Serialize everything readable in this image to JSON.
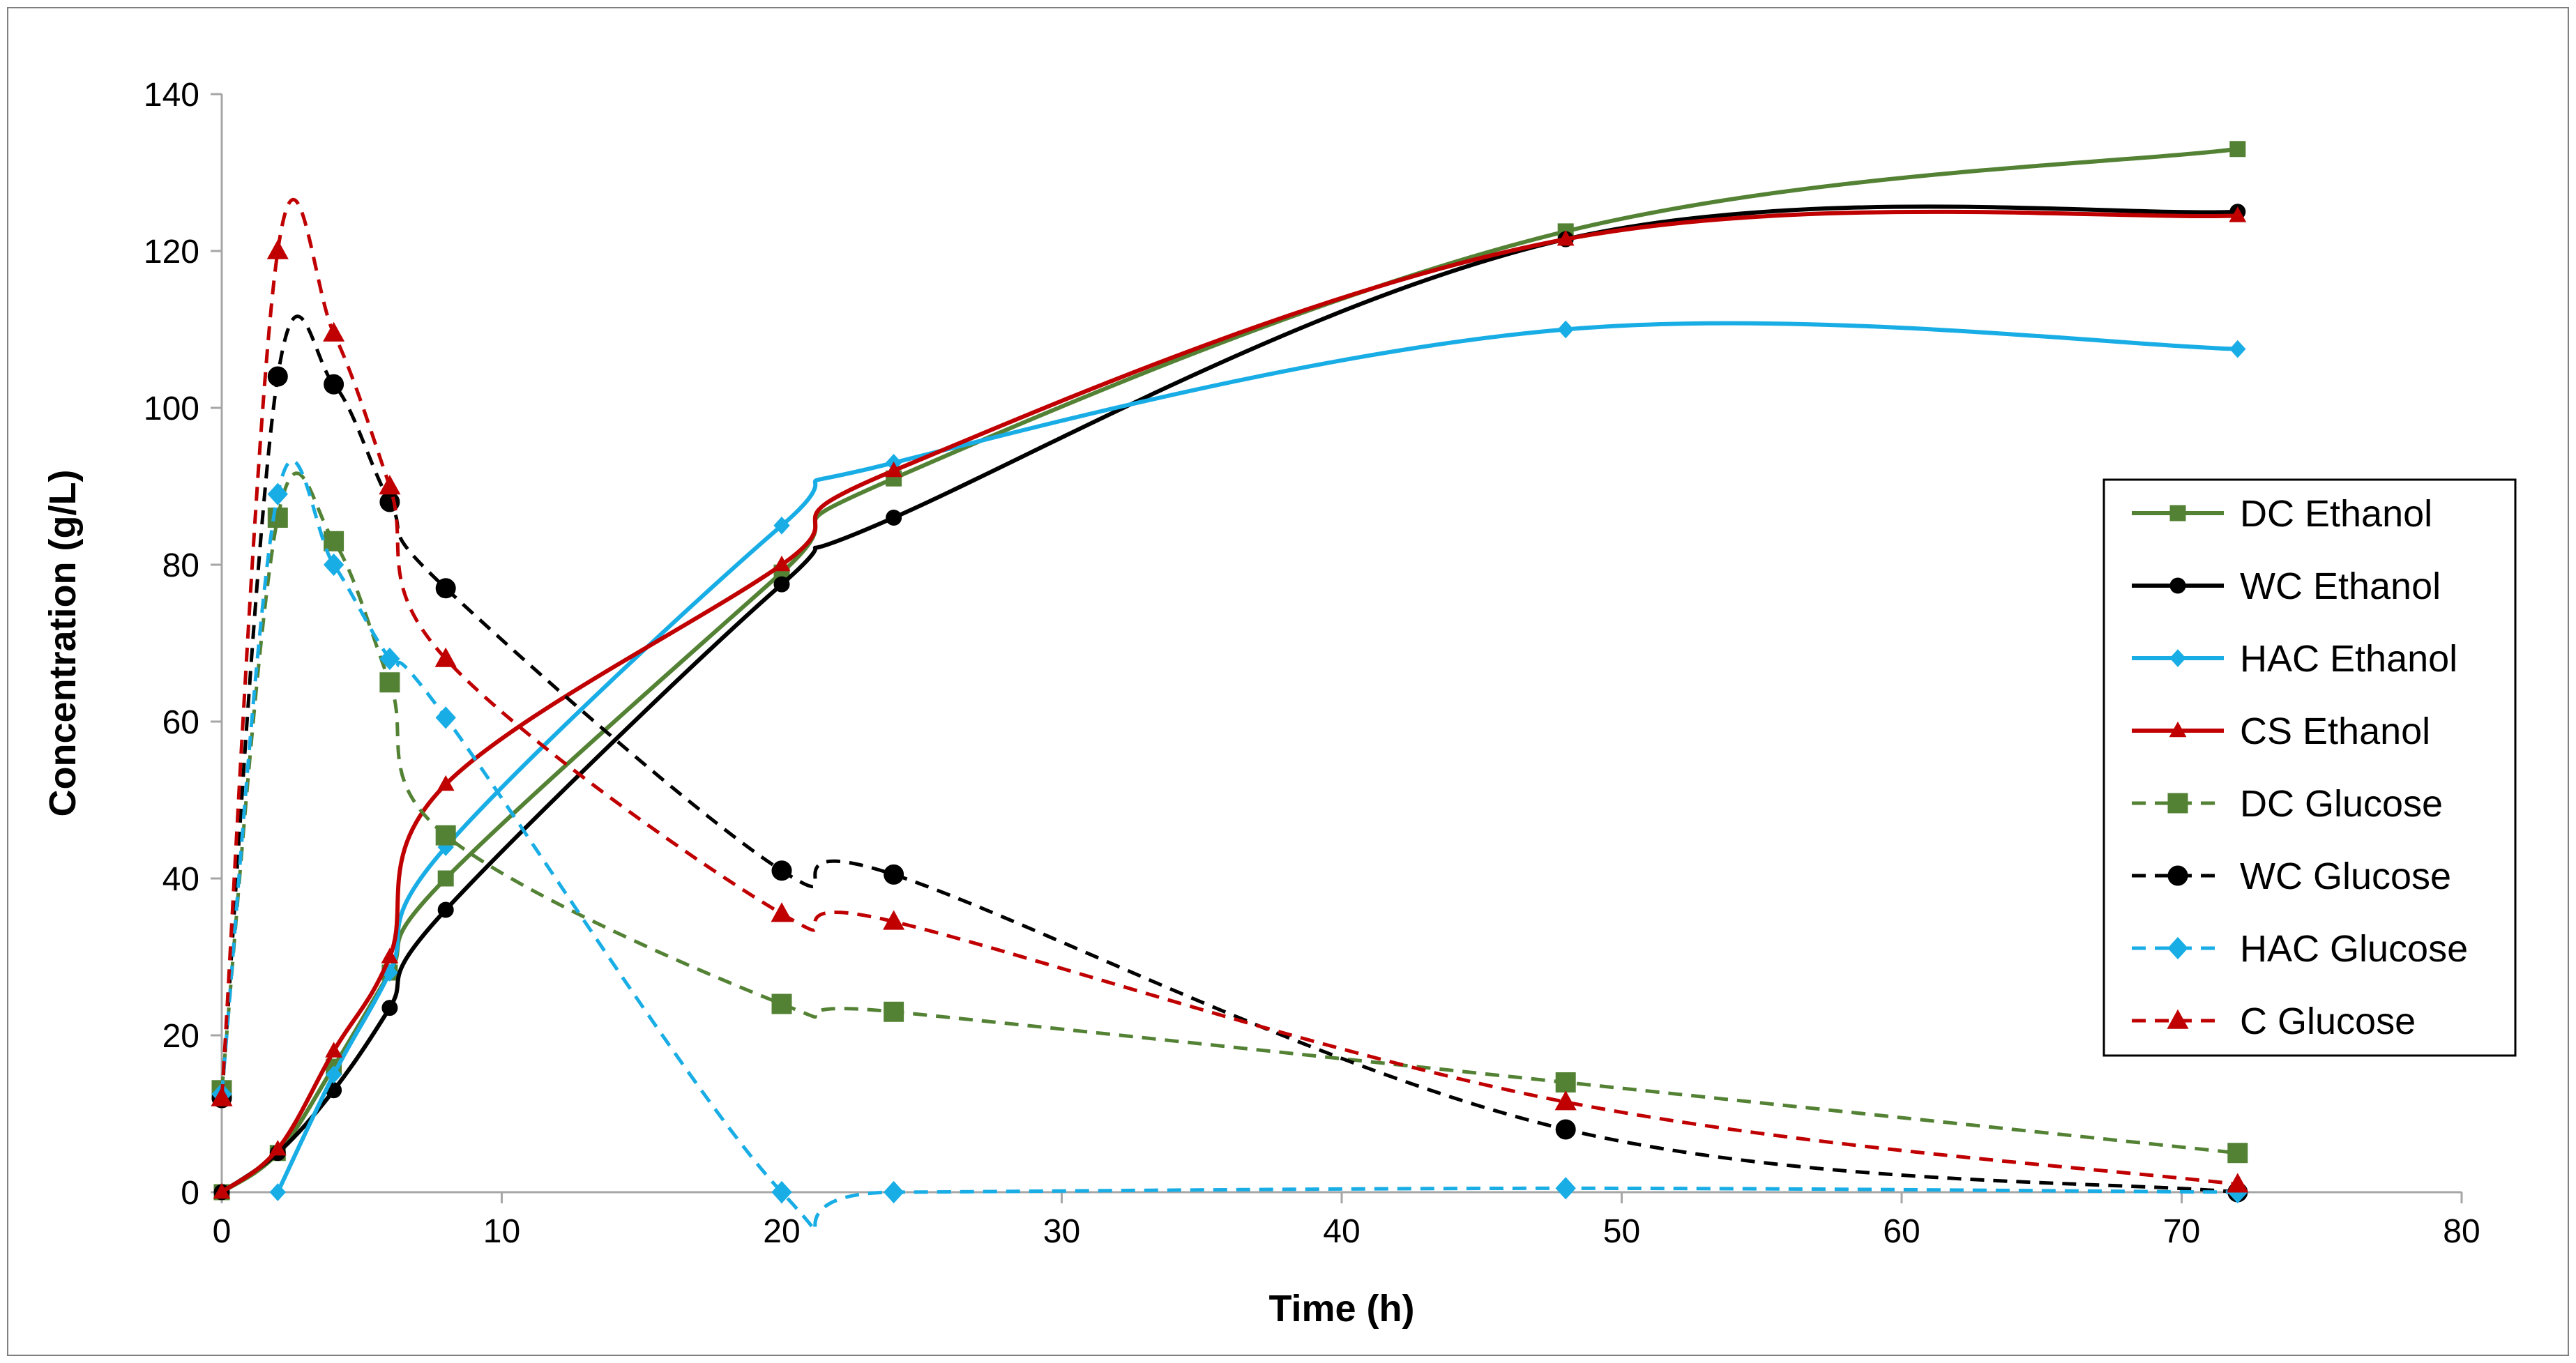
{
  "chart_data": {
    "type": "line",
    "title": "",
    "xlabel": "Time (h)",
    "ylabel": "Concentration (g/L)",
    "xlim": [
      0,
      80
    ],
    "ylim": [
      0,
      140
    ],
    "xticks": [
      "0",
      "10",
      "20",
      "30",
      "40",
      "50",
      "60",
      "70",
      "80"
    ],
    "yticks": [
      "0",
      "20",
      "40",
      "60",
      "80",
      "100",
      "120",
      "140"
    ],
    "grid": false,
    "legend_position": "right",
    "series": [
      {
        "name": "DC Ethanol",
        "color": "#548235",
        "marker": "square",
        "dash": false,
        "x": [
          0,
          2,
          4,
          6,
          8,
          20,
          24,
          48,
          72
        ],
        "y": [
          0,
          5,
          16,
          28,
          40,
          79,
          91,
          122.5,
          133
        ]
      },
      {
        "name": "WC Ethanol",
        "color": "#000000",
        "marker": "circle",
        "dash": false,
        "x": [
          0,
          2,
          4,
          6,
          8,
          20,
          24,
          48,
          72
        ],
        "y": [
          0,
          5,
          13,
          23.5,
          36,
          77.5,
          86,
          121.5,
          125
        ]
      },
      {
        "name": "HAC Ethanol",
        "color": "#19ade6",
        "marker": "diamond",
        "dash": false,
        "x": [
          2,
          4,
          6,
          8,
          20,
          24,
          48,
          72
        ],
        "y": [
          0,
          15,
          28,
          44,
          85,
          93,
          110,
          107.5
        ]
      },
      {
        "name": "CS Ethanol",
        "color": "#c00000",
        "marker": "triangle",
        "dash": false,
        "x": [
          0,
          2,
          4,
          6,
          8,
          20,
          24,
          48,
          72
        ],
        "y": [
          0,
          5.5,
          18,
          30,
          52,
          80,
          92,
          121.5,
          124.5
        ]
      },
      {
        "name": "DC Glucose",
        "color": "#548235",
        "marker": "square",
        "dash": true,
        "x": [
          0,
          2,
          4,
          6,
          8,
          20,
          24,
          48,
          72
        ],
        "y": [
          13,
          86,
          83,
          65,
          45.5,
          24,
          23,
          14,
          5
        ]
      },
      {
        "name": "WC Glucose",
        "color": "#000000",
        "marker": "circle",
        "dash": true,
        "x": [
          0,
          2,
          4,
          6,
          8,
          20,
          24,
          48,
          72
        ],
        "y": [
          12,
          104,
          103,
          88,
          77,
          41,
          40.5,
          8,
          0
        ]
      },
      {
        "name": "HAC Glucose",
        "color": "#19ade6",
        "marker": "diamond",
        "dash": true,
        "x": [
          0,
          2,
          4,
          6,
          8,
          20,
          24,
          48,
          72
        ],
        "y": [
          12.5,
          89,
          80,
          68,
          60.5,
          0,
          0,
          0.5,
          0
        ]
      },
      {
        "name": "C Glucose",
        "color": "#c00000",
        "marker": "triangle",
        "dash": true,
        "x": [
          0,
          2,
          4,
          6,
          8,
          20,
          24,
          48,
          72
        ],
        "y": [
          12,
          120,
          109.5,
          90,
          68,
          35.5,
          34.5,
          11.5,
          1
        ]
      }
    ]
  }
}
